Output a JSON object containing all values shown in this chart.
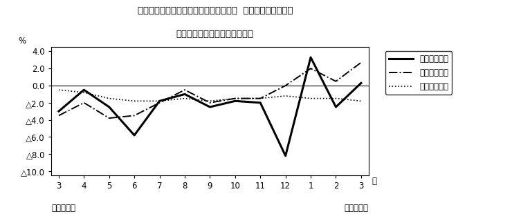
{
  "title_line1": "第４図　賃金、労働時間、常用雇用指数  対前年同月比の推移",
  "title_line2": "（規模５人以上　調査産業計）",
  "xlabel_months": [
    "3",
    "4",
    "5",
    "6",
    "7",
    "8",
    "9",
    "10",
    "11",
    "12",
    "1",
    "2",
    "3"
  ],
  "xlabel_bottom1": "平成２１年",
  "xlabel_bottom2": "平成２２年",
  "ylabel": "%",
  "ylabel_suffix": "月",
  "ylim": [
    -10.5,
    4.5
  ],
  "yticks": [
    4.0,
    2.0,
    0.0,
    -2.0,
    -4.0,
    -6.0,
    -8.0,
    -10.0
  ],
  "ytick_labels": [
    "4.0",
    "2.0",
    "0.0",
    "△2.0",
    "△4.0",
    "△6.0",
    "△8.0",
    "△10.0"
  ],
  "x_indices": [
    0,
    1,
    2,
    3,
    4,
    5,
    6,
    7,
    8,
    9,
    10,
    11,
    12
  ],
  "genkin_kyuyo": [
    -3.0,
    -0.5,
    -2.5,
    -5.8,
    -1.8,
    -1.0,
    -2.5,
    -1.8,
    -2.0,
    -8.2,
    3.3,
    -2.5,
    0.3
  ],
  "sojitsu_rodo": [
    -3.5,
    -2.0,
    -3.8,
    -3.5,
    -2.0,
    -0.5,
    -2.0,
    -1.5,
    -1.5,
    0.0,
    2.0,
    0.5,
    2.7
  ],
  "joko_koyo": [
    -0.5,
    -0.8,
    -1.5,
    -1.8,
    -1.8,
    -1.5,
    -1.8,
    -1.5,
    -1.5,
    -1.2,
    -1.5,
    -1.5,
    -1.8
  ],
  "legend_labels": [
    "現金給与総額",
    "総実労働時間",
    "常用雇用指数"
  ],
  "bg_color": "#ffffff",
  "line_color": "#000000",
  "fontsize_title": 9.5,
  "fontsize_tick": 8.5,
  "fontsize_legend": 8.5
}
